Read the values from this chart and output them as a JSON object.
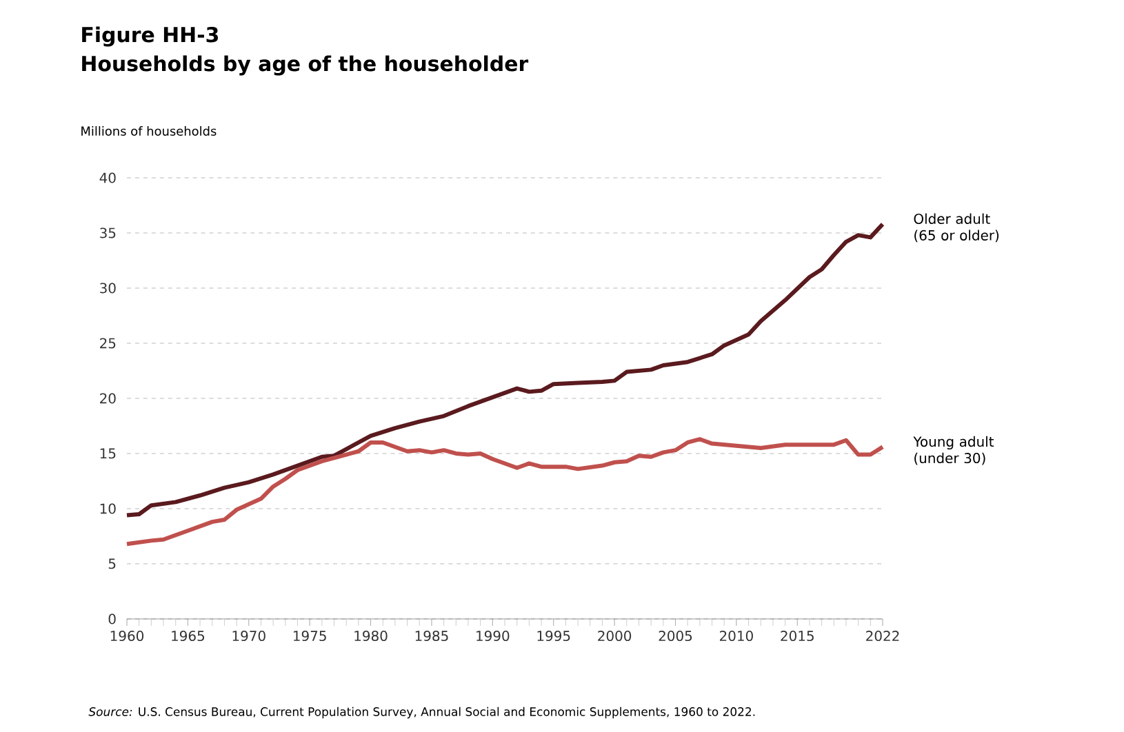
{
  "chart_data": {
    "type": "line",
    "title": "Figure HH-3",
    "subtitle": "Households by age of the householder",
    "ylabel": "Millions of households",
    "annotations": [
      "*Source:* U.S. Census Bureau, Current Population Survey, Annual Social and Economic Supplements, 1960 to 2022."
    ],
    "xlim": [
      1960,
      2022
    ],
    "xticks": [
      1960,
      1965,
      1970,
      1975,
      1980,
      1985,
      1990,
      1995,
      2000,
      2005,
      2010,
      2015,
      2022
    ],
    "ylim": [
      0,
      40
    ],
    "yticks": [
      0,
      5,
      10,
      15,
      20,
      25,
      30,
      35,
      40
    ],
    "grid": "y",
    "legend": false,
    "series": [
      {
        "name": "Older adult (65 or older)",
        "color": "#5a1a1e",
        "x": [
          1960,
          1961,
          1962,
          1964,
          1966,
          1968,
          1970,
          1972,
          1974,
          1976,
          1977,
          1978,
          1980,
          1982,
          1984,
          1986,
          1988,
          1990,
          1992,
          1993,
          1994,
          1995,
          1997,
          1999,
          2000,
          2001,
          2003,
          2004,
          2006,
          2008,
          2009,
          2011,
          2012,
          2014,
          2016,
          2017,
          2018,
          2019,
          2020,
          2021,
          2022
        ],
        "values": [
          9.4,
          9.5,
          10.3,
          10.6,
          11.2,
          11.9,
          12.4,
          13.1,
          13.9,
          14.7,
          14.8,
          15.4,
          16.6,
          17.3,
          17.9,
          18.4,
          19.3,
          20.1,
          20.9,
          20.6,
          20.7,
          21.3,
          21.4,
          21.5,
          21.6,
          22.4,
          22.6,
          23.0,
          23.3,
          24.0,
          24.8,
          25.8,
          27.0,
          28.9,
          31.0,
          31.7,
          33.0,
          34.2,
          34.8,
          34.6,
          35.8
        ]
      },
      {
        "name": "Young adult (under 30)",
        "color": "#c0504d",
        "x": [
          1960,
          1962,
          1963,
          1965,
          1967,
          1968,
          1969,
          1971,
          1972,
          1973,
          1974,
          1976,
          1978,
          1979,
          1980,
          1981,
          1982,
          1983,
          1984,
          1985,
          1986,
          1987,
          1988,
          1989,
          1990,
          1992,
          1993,
          1994,
          1996,
          1997,
          1999,
          2000,
          2001,
          2002,
          2003,
          2004,
          2005,
          2006,
          2007,
          2008,
          2010,
          2012,
          2014,
          2016,
          2018,
          2019,
          2020,
          2021,
          2022
        ],
        "values": [
          6.8,
          7.1,
          7.2,
          8.0,
          8.8,
          9.0,
          9.9,
          10.9,
          12.0,
          12.7,
          13.5,
          14.3,
          14.9,
          15.2,
          16.0,
          16.0,
          15.6,
          15.2,
          15.3,
          15.1,
          15.3,
          15.0,
          14.9,
          15.0,
          14.5,
          13.7,
          14.1,
          13.8,
          13.8,
          13.6,
          13.9,
          14.2,
          14.3,
          14.8,
          14.7,
          15.1,
          15.3,
          16.0,
          16.3,
          15.9,
          15.7,
          15.5,
          15.8,
          15.8,
          15.8,
          16.2,
          14.9,
          14.9,
          15.6
        ]
      }
    ]
  }
}
